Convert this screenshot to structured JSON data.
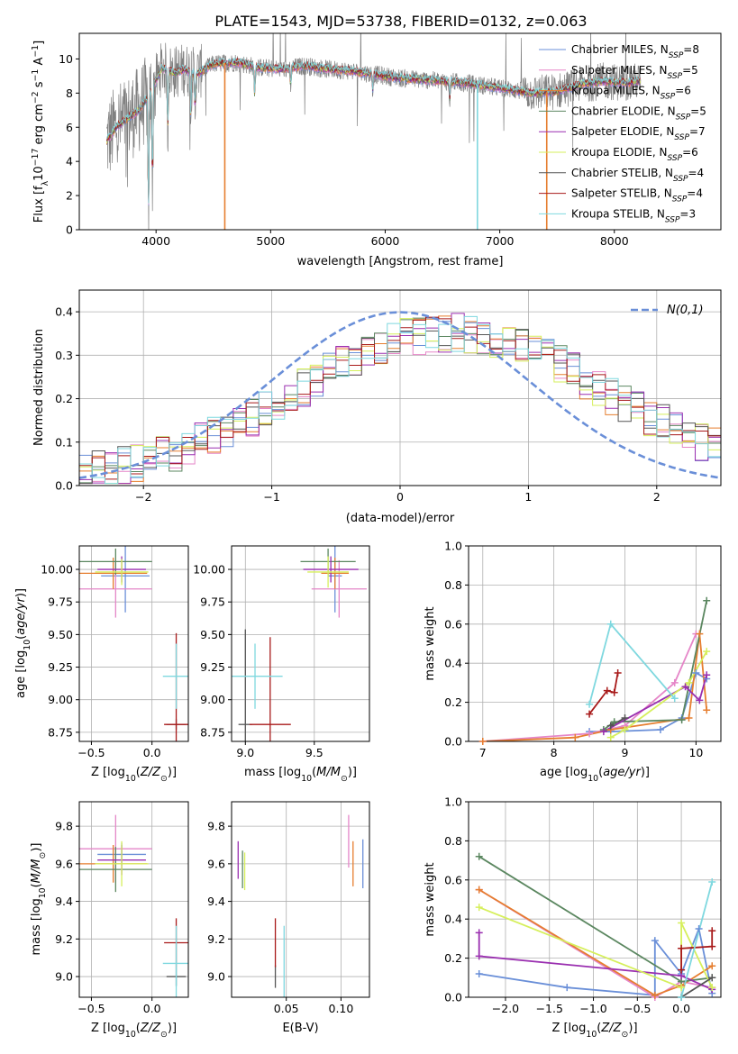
{
  "title": "PLATE=1543, MJD=53738, FIBERID=0132, z=0.063",
  "colors": {
    "Chabrier MILES": "#6a8fd8",
    "Salpeter MILES": "#e586c8",
    "Kroupa MILES": "#e67e2f",
    "Chabrier ELODIE": "#5b8760",
    "Salpeter ELODIE": "#9a2fb0",
    "Kroupa ELODIE": "#d6ef5c",
    "Chabrier STELIB": "#555555",
    "Salpeter STELIB": "#a81a1a",
    "Kroupa STELIB": "#7fd8df",
    "spectrum": "#808080",
    "normal": "#6a8fd8"
  },
  "chart_data": [
    {
      "id": "spectrum",
      "type": "line",
      "xlabel": "wavelength [Angstrom, rest frame]",
      "ylabel": "Flux [f_λ10^-17 erg cm^-2 s^-1 A^-1]",
      "xlim": [
        3330,
        8930
      ],
      "ylim": [
        0,
        11.5
      ],
      "xticks": [
        4000,
        5000,
        6000,
        7000,
        8000
      ],
      "yticks": [
        0,
        2,
        4,
        6,
        8,
        10
      ],
      "legend": [
        {
          "name": "Chabrier MILES",
          "nssp": "N_SSP=8"
        },
        {
          "name": "Salpeter MILES",
          "nssp": "N_SSP=5"
        },
        {
          "name": "Kroupa MILES",
          "nssp": "N_SSP=6"
        },
        {
          "name": "Chabrier ELODIE",
          "nssp": "N_SSP=5"
        },
        {
          "name": "Salpeter ELODIE",
          "nssp": "N_SSP=7"
        },
        {
          "name": "Kroupa ELODIE",
          "nssp": "N_SSP=6"
        },
        {
          "name": "Chabrier STELIB",
          "nssp": "N_SSP=4"
        },
        {
          "name": "Salpeter STELIB",
          "nssp": "N_SSP=4"
        },
        {
          "name": "Kroupa STELIB",
          "nssp": "N_SSP=3"
        }
      ],
      "legend_position": "right",
      "continuum": [
        [
          3570,
          5.2
        ],
        [
          3650,
          6.0
        ],
        [
          3750,
          6.5
        ],
        [
          3850,
          7.0
        ],
        [
          3950,
          8.0
        ],
        [
          4050,
          9.5
        ],
        [
          4150,
          9.2
        ],
        [
          4250,
          9.4
        ],
        [
          4350,
          9.1
        ],
        [
          4500,
          9.7
        ],
        [
          4700,
          9.8
        ],
        [
          4900,
          9.5
        ],
        [
          5100,
          9.4
        ],
        [
          5300,
          9.6
        ],
        [
          5500,
          9.4
        ],
        [
          5700,
          9.3
        ],
        [
          5900,
          9.1
        ],
        [
          6100,
          8.9
        ],
        [
          6300,
          8.8
        ],
        [
          6500,
          8.7
        ],
        [
          6700,
          8.6
        ],
        [
          6900,
          8.4
        ],
        [
          7100,
          8.2
        ],
        [
          7300,
          8.0
        ],
        [
          7500,
          8.1
        ],
        [
          7700,
          8.5
        ],
        [
          7900,
          8.7
        ],
        [
          8100,
          8.6
        ],
        [
          8200,
          8.7
        ]
      ],
      "absorption_dips": [
        [
          3934,
          0.0
        ],
        [
          3969,
          2.0
        ],
        [
          4102,
          5.5
        ],
        [
          4304,
          6.3
        ],
        [
          4340,
          7.0
        ],
        [
          4861,
          7.8
        ],
        [
          5175,
          8.3
        ],
        [
          5892,
          8.1
        ],
        [
          6563,
          7.6
        ]
      ],
      "model_gaps": [
        [
          4600,
          "Kroupa MILES"
        ],
        [
          7410,
          "Kroupa MILES"
        ],
        [
          6805,
          "Kroupa STELIB"
        ]
      ]
    },
    {
      "id": "residuals",
      "type": "step",
      "xlabel": "(data-model)/error",
      "ylabel": "Normed distribution",
      "xlim": [
        -2.5,
        2.5
      ],
      "ylim": [
        0,
        0.45
      ],
      "xticks": [
        -2,
        -1,
        0,
        1,
        2
      ],
      "yticks": [
        0.0,
        0.1,
        0.2,
        0.3,
        0.4
      ],
      "grid": true,
      "legend_label": "N(0,1)",
      "legend_position": "top-right",
      "bin_edges_start": -2.5,
      "bin_width": 0.1,
      "base_values": [
        0.028,
        0.035,
        0.038,
        0.045,
        0.052,
        0.06,
        0.068,
        0.078,
        0.09,
        0.102,
        0.115,
        0.128,
        0.142,
        0.158,
        0.174,
        0.19,
        0.208,
        0.226,
        0.244,
        0.262,
        0.28,
        0.296,
        0.31,
        0.322,
        0.332,
        0.34,
        0.346,
        0.35,
        0.352,
        0.352,
        0.35,
        0.346,
        0.34,
        0.332,
        0.322,
        0.31,
        0.296,
        0.28,
        0.262,
        0.244,
        0.226,
        0.208,
        0.19,
        0.174,
        0.158,
        0.142,
        0.128,
        0.115,
        0.102,
        0.09
      ]
    },
    {
      "id": "age-vs-Z",
      "type": "errorbar",
      "xlabel": "Z [log10(Z/Z⊙)]",
      "ylabel": "age  [log10(age/yr)]",
      "xlim": [
        -0.6,
        0.3
      ],
      "ylim": [
        8.68,
        10.18
      ],
      "xticks": [
        -0.5,
        0.0
      ],
      "yticks": [
        8.75,
        9.0,
        9.25,
        9.5,
        9.75,
        10.0
      ],
      "points": [
        {
          "series": "Chabrier MILES",
          "x": -0.22,
          "y": 9.95,
          "xerr": 0.2,
          "yerr": 0.28
        },
        {
          "series": "Salpeter MILES",
          "x": -0.3,
          "y": 9.85,
          "xerr": 0.3,
          "yerr": 0.22
        },
        {
          "series": "Kroupa MILES",
          "x": -0.32,
          "y": 9.97,
          "xerr": 0.28,
          "yerr": 0.12
        },
        {
          "series": "Chabrier ELODIE",
          "x": -0.3,
          "y": 10.06,
          "xerr": 0.3,
          "yerr": 0.1
        },
        {
          "series": "Salpeter ELODIE",
          "x": -0.25,
          "y": 10.0,
          "xerr": 0.2,
          "yerr": 0.1
        },
        {
          "series": "Kroupa ELODIE",
          "x": -0.25,
          "y": 9.98,
          "xerr": 0.22,
          "yerr": 0.1
        },
        {
          "series": "Chabrier STELIB",
          "x": 0.2,
          "y": 8.81,
          "xerr": 0.08,
          "yerr": 0.04
        },
        {
          "series": "Salpeter STELIB",
          "x": 0.2,
          "y": 8.81,
          "xerr": 0.1,
          "yerr": 0.7
        },
        {
          "series": "Kroupa STELIB",
          "x": 0.2,
          "y": 9.18,
          "xerr": 0.11,
          "yerr": 0.25
        }
      ]
    },
    {
      "id": "age-vs-mass",
      "type": "errorbar",
      "xlabel": "mass [log10(M/M⊙)]",
      "ylabel": "",
      "xlim": [
        8.9,
        9.9
      ],
      "ylim": [
        8.68,
        10.18
      ],
      "xticks": [
        9.0,
        9.5
      ],
      "yticks": [
        8.75,
        9.0,
        9.25,
        9.5,
        9.75,
        10.0
      ],
      "points": [
        {
          "series": "Chabrier MILES",
          "x": 9.65,
          "y": 9.95,
          "xerr": 0.05,
          "yerr": 0.28
        },
        {
          "series": "Salpeter MILES",
          "x": 9.68,
          "y": 9.85,
          "xerr": 0.2,
          "yerr": 0.22
        },
        {
          "series": "Kroupa MILES",
          "x": 9.65,
          "y": 9.97,
          "xerr": 0.1,
          "yerr": 0.12
        },
        {
          "series": "Chabrier ELODIE",
          "x": 9.6,
          "y": 10.06,
          "xerr": 0.2,
          "yerr": 0.1
        },
        {
          "series": "Salpeter ELODIE",
          "x": 9.62,
          "y": 10.0,
          "xerr": 0.2,
          "yerr": 0.1
        },
        {
          "series": "Kroupa ELODIE",
          "x": 9.6,
          "y": 9.98,
          "xerr": 0.15,
          "yerr": 0.12
        },
        {
          "series": "Chabrier STELIB",
          "x": 9.0,
          "y": 8.81,
          "xerr": 0.05,
          "yerr": 0.73
        },
        {
          "series": "Salpeter STELIB",
          "x": 9.18,
          "y": 8.81,
          "xerr": 0.15,
          "yerr": 0.67
        },
        {
          "series": "Kroupa STELIB",
          "x": 9.07,
          "y": 9.18,
          "xerr": 0.2,
          "yerr": 0.25
        }
      ]
    },
    {
      "id": "weight-vs-age",
      "type": "line",
      "xlabel": "age  [log10(age/yr)]",
      "ylabel": "mass weight",
      "xlim": [
        6.8,
        10.35
      ],
      "ylim": [
        0,
        1.0
      ],
      "xticks": [
        7,
        8,
        9,
        10
      ],
      "yticks": [
        0.0,
        0.2,
        0.4,
        0.6,
        0.8,
        1.0
      ],
      "series": [
        {
          "name": "Chabrier MILES",
          "points": [
            [
              8.5,
              0.05
            ],
            [
              8.8,
              0.05
            ],
            [
              9.5,
              0.06
            ],
            [
              9.8,
              0.12
            ],
            [
              10.0,
              0.35
            ],
            [
              10.15,
              0.32
            ]
          ]
        },
        {
          "name": "Salpeter MILES",
          "points": [
            [
              7.0,
              0.0
            ],
            [
              8.5,
              0.04
            ],
            [
              9.0,
              0.08
            ],
            [
              9.7,
              0.3
            ],
            [
              10.0,
              0.55
            ]
          ]
        },
        {
          "name": "Kroupa MILES",
          "points": [
            [
              7.0,
              0.0
            ],
            [
              8.3,
              0.02
            ],
            [
              8.8,
              0.06
            ],
            [
              9.9,
              0.12
            ],
            [
              10.05,
              0.55
            ],
            [
              10.15,
              0.16
            ]
          ]
        },
        {
          "name": "Chabrier ELODIE",
          "points": [
            [
              8.7,
              0.06
            ],
            [
              8.85,
              0.1
            ],
            [
              9.8,
              0.11
            ],
            [
              10.15,
              0.72
            ]
          ]
        },
        {
          "name": "Salpeter ELODIE",
          "points": [
            [
              8.7,
              0.05
            ],
            [
              9.85,
              0.28
            ],
            [
              10.05,
              0.21
            ],
            [
              10.15,
              0.34
            ]
          ]
        },
        {
          "name": "Kroupa ELODIE",
          "points": [
            [
              8.8,
              0.02
            ],
            [
              9.0,
              0.06
            ],
            [
              9.9,
              0.3
            ],
            [
              10.15,
              0.46
            ]
          ]
        },
        {
          "name": "Chabrier STELIB",
          "points": [
            [
              8.8,
              0.08
            ],
            [
              9.0,
              0.12
            ]
          ]
        },
        {
          "name": "Salpeter STELIB",
          "points": [
            [
              8.5,
              0.14
            ],
            [
              8.75,
              0.26
            ],
            [
              8.85,
              0.25
            ],
            [
              8.9,
              0.35
            ]
          ]
        },
        {
          "name": "Kroupa STELIB",
          "points": [
            [
              8.5,
              0.19
            ],
            [
              8.8,
              0.6
            ],
            [
              9.7,
              0.22
            ]
          ]
        }
      ]
    },
    {
      "id": "mass-vs-Z",
      "type": "errorbar",
      "xlabel": "Z [log10(Z/Z⊙)]",
      "ylabel": "mass [log10(M/M⊙)]",
      "xlim": [
        -0.6,
        0.3
      ],
      "ylim": [
        8.89,
        9.93
      ],
      "xticks": [
        -0.5,
        0.0
      ],
      "yticks": [
        9.0,
        9.2,
        9.4,
        9.6,
        9.8
      ],
      "points": [
        {
          "series": "Chabrier MILES",
          "x": -0.25,
          "y": 9.65,
          "xerr": 0.2,
          "yerr": 0.06
        },
        {
          "series": "Salpeter MILES",
          "x": -0.3,
          "y": 9.68,
          "xerr": 0.3,
          "yerr": 0.18
        },
        {
          "series": "Kroupa MILES",
          "x": -0.32,
          "y": 9.6,
          "xerr": 0.28,
          "yerr": 0.1
        },
        {
          "series": "Chabrier ELODIE",
          "x": -0.3,
          "y": 9.57,
          "xerr": 0.3,
          "yerr": 0.12
        },
        {
          "series": "Salpeter ELODIE",
          "x": -0.25,
          "y": 9.62,
          "xerr": 0.2,
          "yerr": 0.08
        },
        {
          "series": "Kroupa ELODIE",
          "x": -0.25,
          "y": 9.6,
          "xerr": 0.22,
          "yerr": 0.12
        },
        {
          "series": "Chabrier STELIB",
          "x": 0.2,
          "y": 9.0,
          "xerr": 0.08,
          "yerr": 0.05
        },
        {
          "series": "Salpeter STELIB",
          "x": 0.2,
          "y": 9.18,
          "xerr": 0.1,
          "yerr": 0.13
        },
        {
          "series": "Kroupa STELIB",
          "x": 0.2,
          "y": 9.07,
          "xerr": 0.11,
          "yerr": 0.2
        }
      ]
    },
    {
      "id": "mass-vs-ebv",
      "type": "errorbar",
      "xlabel": "E(B-V)",
      "ylabel": "",
      "xlim": [
        0.0,
        0.126
      ],
      "ylim": [
        8.89,
        9.93
      ],
      "xticks": [
        0.05,
        0.1
      ],
      "yticks": [
        9.0,
        9.2,
        9.4,
        9.6,
        9.8
      ],
      "points": [
        {
          "series": "Chabrier MILES",
          "x": 0.12,
          "y": 9.6,
          "xerr": 0,
          "yerr": 0.13
        },
        {
          "series": "Salpeter MILES",
          "x": 0.107,
          "y": 9.72,
          "xerr": 0,
          "yerr": 0.14
        },
        {
          "series": "Kroupa MILES",
          "x": 0.111,
          "y": 9.6,
          "xerr": 0,
          "yerr": 0.12
        },
        {
          "series": "Chabrier ELODIE",
          "x": 0.01,
          "y": 9.57,
          "xerr": 0,
          "yerr": 0.1
        },
        {
          "series": "Salpeter ELODIE",
          "x": 0.006,
          "y": 9.62,
          "xerr": 0,
          "yerr": 0.1
        },
        {
          "series": "Kroupa ELODIE",
          "x": 0.012,
          "y": 9.56,
          "xerr": 0,
          "yerr": 0.1
        },
        {
          "series": "Chabrier STELIB",
          "x": 0.04,
          "y": 9.0,
          "xerr": 0,
          "yerr": 0.06
        },
        {
          "series": "Salpeter STELIB",
          "x": 0.04,
          "y": 9.18,
          "xerr": 0,
          "yerr": 0.13
        },
        {
          "series": "Kroupa STELIB",
          "x": 0.048,
          "y": 9.07,
          "xerr": 0,
          "yerr": 0.2
        }
      ]
    },
    {
      "id": "weight-vs-Z",
      "type": "line",
      "xlabel": "Z [log10(Z/Z⊙)]",
      "ylabel": "mass weight",
      "xlim": [
        -2.42,
        0.45
      ],
      "ylim": [
        0,
        1.0
      ],
      "xticks": [
        -2.0,
        -1.5,
        -1.0,
        -0.5,
        0.0
      ],
      "yticks": [
        0.0,
        0.2,
        0.4,
        0.6,
        0.8,
        1.0
      ],
      "series": [
        {
          "name": "Chabrier MILES",
          "points": [
            [
              -2.3,
              0.12
            ],
            [
              -1.3,
              0.05
            ],
            [
              -0.3,
              0.01
            ],
            [
              -0.3,
              0.29
            ],
            [
              0.0,
              0.12
            ],
            [
              0.2,
              0.35
            ],
            [
              0.35,
              0.02
            ]
          ]
        },
        {
          "name": "Salpeter MILES",
          "points": [
            [
              -2.3,
              0.55
            ],
            [
              -0.3,
              0.0
            ],
            [
              0.0,
              0.08
            ],
            [
              0.35,
              0.05
            ]
          ]
        },
        {
          "name": "Kroupa MILES",
          "points": [
            [
              -2.3,
              0.55
            ],
            [
              -0.3,
              0.01
            ],
            [
              0.0,
              0.06
            ],
            [
              0.35,
              0.16
            ]
          ]
        },
        {
          "name": "Chabrier ELODIE",
          "points": [
            [
              -2.3,
              0.72
            ],
            [
              0.0,
              0.08
            ],
            [
              0.35,
              0.1
            ]
          ]
        },
        {
          "name": "Salpeter ELODIE",
          "points": [
            [
              -2.3,
              0.33
            ],
            [
              -2.3,
              0.21
            ],
            [
              0.0,
              0.11
            ],
            [
              0.35,
              0.04
            ]
          ]
        },
        {
          "name": "Kroupa ELODIE",
          "points": [
            [
              -2.3,
              0.46
            ],
            [
              0.0,
              0.05
            ],
            [
              0.0,
              0.38
            ],
            [
              0.35,
              0.05
            ]
          ]
        },
        {
          "name": "Chabrier STELIB",
          "points": [
            [
              0.0,
              0.0
            ],
            [
              0.35,
              0.1
            ]
          ]
        },
        {
          "name": "Salpeter STELIB",
          "points": [
            [
              0.0,
              0.14
            ],
            [
              0.0,
              0.25
            ],
            [
              0.35,
              0.26
            ],
            [
              0.35,
              0.34
            ]
          ]
        },
        {
          "name": "Kroupa STELIB",
          "points": [
            [
              0.0,
              0.0
            ],
            [
              0.35,
              0.59
            ]
          ]
        }
      ]
    }
  ]
}
